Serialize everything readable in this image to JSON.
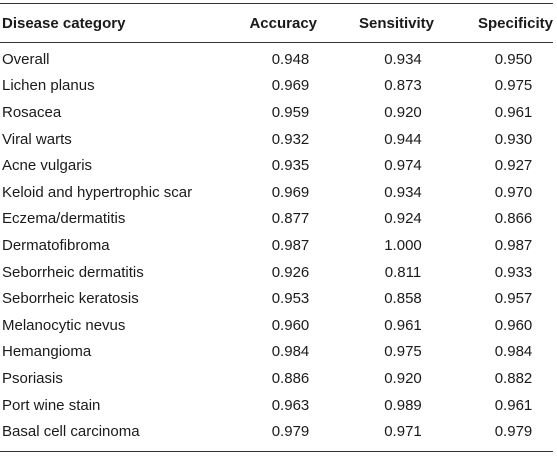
{
  "table": {
    "headers": [
      "Disease category",
      "Accuracy",
      "Sensitivity",
      "Specificity"
    ],
    "rows": [
      [
        "Overall",
        "0.948",
        "0.934",
        "0.950"
      ],
      [
        "Lichen planus",
        "0.969",
        "0.873",
        "0.975"
      ],
      [
        "Rosacea",
        "0.959",
        "0.920",
        "0.961"
      ],
      [
        "Viral warts",
        "0.932",
        "0.944",
        "0.930"
      ],
      [
        "Acne vulgaris",
        "0.935",
        "0.974",
        "0.927"
      ],
      [
        "Keloid and hypertrophic scar",
        "0.969",
        "0.934",
        "0.970"
      ],
      [
        "Eczema/dermatitis",
        "0.877",
        "0.924",
        "0.866"
      ],
      [
        "Dermatofibroma",
        "0.987",
        "1.000",
        "0.987"
      ],
      [
        "Seborrheic dermatitis",
        "0.926",
        "0.811",
        "0.933"
      ],
      [
        "Seborrheic keratosis",
        "0.953",
        "0.858",
        "0.957"
      ],
      [
        "Melanocytic nevus",
        "0.960",
        "0.961",
        "0.960"
      ],
      [
        "Hemangioma",
        "0.984",
        "0.975",
        "0.984"
      ],
      [
        "Psoriasis",
        "0.886",
        "0.920",
        "0.882"
      ],
      [
        "Port wine stain",
        "0.963",
        "0.989",
        "0.961"
      ],
      [
        "Basal cell carcinoma",
        "0.979",
        "0.971",
        "0.979"
      ]
    ]
  }
}
